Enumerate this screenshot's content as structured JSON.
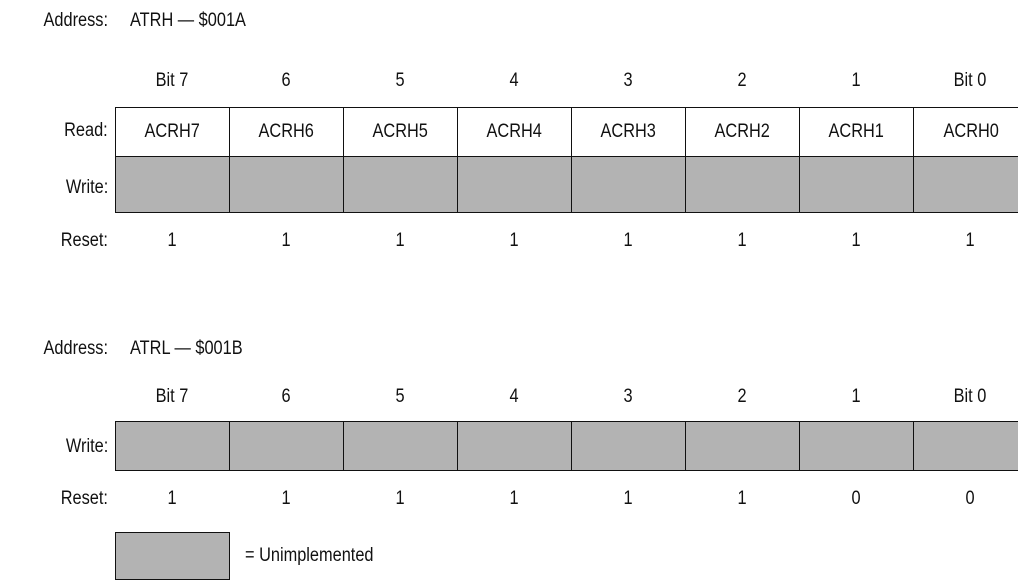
{
  "registers": [
    {
      "address_label": "Address:",
      "address_value": "ATRH — $001A",
      "bit_headers": [
        "Bit 7",
        "6",
        "5",
        "4",
        "3",
        "2",
        "1",
        "Bit 0"
      ],
      "read_label": "Read:",
      "read_values": [
        "ACRH7",
        "ACRH6",
        "ACRH5",
        "ACRH4",
        "ACRH3",
        "ACRH2",
        "ACRH1",
        "ACRH0"
      ],
      "write_label": "Write:",
      "reset_label": "Reset:",
      "reset_values": [
        "1",
        "1",
        "1",
        "1",
        "1",
        "1",
        "1",
        "1"
      ]
    },
    {
      "address_label": "Address:",
      "address_value": "ATRL — $001B",
      "bit_headers": [
        "Bit 7",
        "6",
        "5",
        "4",
        "3",
        "2",
        "1",
        "Bit 0"
      ],
      "write_label": "Write:",
      "reset_label": "Reset:",
      "reset_values": [
        "1",
        "1",
        "1",
        "1",
        "1",
        "1",
        "0",
        "0"
      ]
    }
  ],
  "legend": {
    "text": "= Unimplemented"
  },
  "colors": {
    "unimplemented": "#b3b3b3"
  }
}
